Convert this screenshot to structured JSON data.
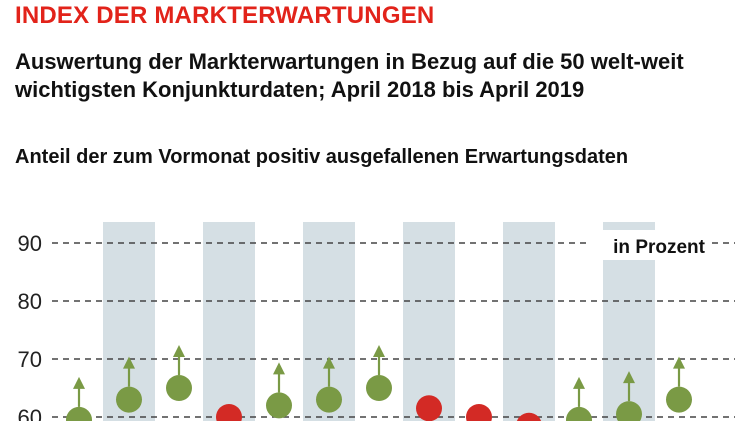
{
  "colors": {
    "title": "#e2231a",
    "band": "#d5dfe4",
    "grid": "#444444",
    "positive": "#7a9a45",
    "negative": "#d32a25",
    "arrow": "#7a9a45"
  },
  "header": {
    "title": "INDEX DER MARKTERWARTUNGEN",
    "subtitle": "Auswertung der Markterwartungen in Bezug auf die 50 welt-weit wichtigsten Konjunkturdaten; April 2018 bis April 2019",
    "description": "Anteil der zum Vormonat positiv ausgefallenen Erwartungsdaten"
  },
  "chart_data": {
    "type": "scatter",
    "unit_label": "in Prozent",
    "ylim": [
      58,
      97
    ],
    "yticks": [
      90,
      80,
      70,
      60
    ],
    "grid": "dashed horizontal",
    "shaded_alternate_columns": true,
    "points": [
      {
        "value": 59.5,
        "trend": "up"
      },
      {
        "value": 63,
        "trend": "up"
      },
      {
        "value": 65,
        "trend": "up"
      },
      {
        "value": 60,
        "trend": "down"
      },
      {
        "value": 62,
        "trend": "up"
      },
      {
        "value": 63,
        "trend": "up"
      },
      {
        "value": 65,
        "trend": "up"
      },
      {
        "value": 61.5,
        "trend": "down"
      },
      {
        "value": 60,
        "trend": "down"
      },
      {
        "value": 58.5,
        "trend": "down"
      },
      {
        "value": 59.5,
        "trend": "up"
      },
      {
        "value": 60.5,
        "trend": "up"
      },
      {
        "value": 63,
        "trend": "up"
      }
    ]
  }
}
